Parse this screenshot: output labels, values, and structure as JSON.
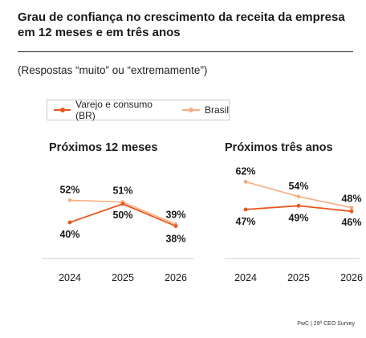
{
  "title": "Grau de confiança no crescimento da receita da empresa em 12 meses e em três anos",
  "subtitle": "(Respostas “muito” ou “extremamente”)",
  "footer": "PwC | 29ª CEO Survey",
  "colors": {
    "varejo": "#e8571e",
    "brasil": "#f6ad80"
  },
  "chart_data": [
    {
      "type": "line",
      "title": "Próximos 12 meses",
      "categories": [
        "2024",
        "2025",
        "2026"
      ],
      "series": [
        {
          "name": "Varejo e consumo (BR)",
          "values": [
            40,
            50,
            38
          ],
          "labels": [
            "40%",
            "50%",
            "38%"
          ]
        },
        {
          "name": "Brasil",
          "values": [
            52,
            51,
            39
          ],
          "labels": [
            "52%",
            "51%",
            "39%"
          ]
        }
      ],
      "legend": "top-left",
      "grid": false
    },
    {
      "type": "line",
      "title": "Próximos três anos",
      "categories": [
        "2024",
        "2025",
        "2026"
      ],
      "series": [
        {
          "name": "Varejo e consumo (BR)",
          "values": [
            47,
            49,
            46
          ],
          "labels": [
            "47%",
            "49%",
            "46%"
          ]
        },
        {
          "name": "Brasil",
          "values": [
            62,
            54,
            48
          ],
          "labels": [
            "62%",
            "54%",
            "48%"
          ]
        }
      ],
      "legend": "top-left",
      "grid": false
    }
  ]
}
